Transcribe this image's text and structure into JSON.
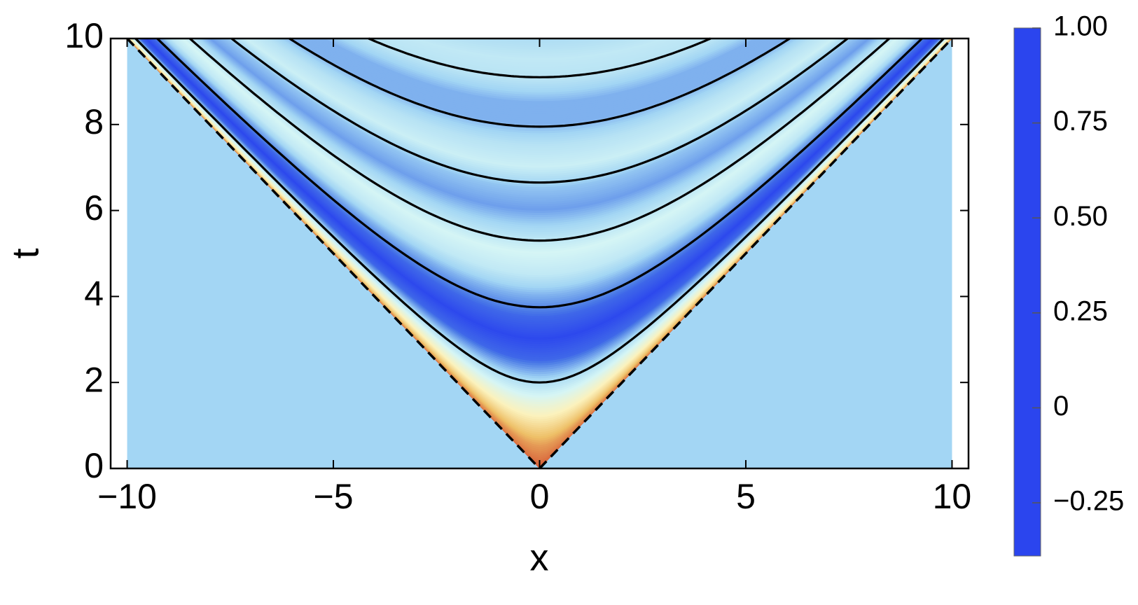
{
  "chart_data": {
    "type": "density",
    "xlabel": "x",
    "ylabel": "t",
    "xlim": [
      -10.4,
      10.4
    ],
    "ylim": [
      0,
      10
    ],
    "xticks": [
      {
        "value": -10,
        "label": "−10"
      },
      {
        "value": -5,
        "label": "−5"
      },
      0,
      5,
      10
    ],
    "yticks": [
      0,
      2,
      4,
      6,
      8,
      10
    ],
    "field": {
      "x_range": [
        -10,
        10
      ],
      "outside_value": 0,
      "s": [
        0,
        0.5,
        1,
        1.5,
        2,
        2.5,
        3,
        3.5,
        4,
        4.5,
        5,
        5.5,
        6,
        6.5,
        7,
        7.5,
        8,
        8.5,
        9,
        9.5,
        10
      ],
      "values": [
        1,
        0.85,
        0.6,
        0.35,
        0.05,
        -0.3,
        -0.38,
        -0.3,
        -0.1,
        0.15,
        0.25,
        0.05,
        -0.15,
        -0.05,
        0.2,
        0.1,
        -0.1,
        -0.1,
        0.1,
        0.15,
        0.05
      ]
    },
    "contours": {
      "levels": [
        2,
        3.75,
        5.3,
        6.65,
        7.95,
        9.1
      ],
      "color": "#000000"
    },
    "colormap": {
      "values": [
        -0.39,
        -0.25,
        0,
        0.25,
        0.5,
        0.75,
        1
      ],
      "colors": [
        "#2b45ee",
        "#4a7ae6",
        "#a3d6f4",
        "#d5f5f5",
        "#fbf2bd",
        "#eec068",
        "#d7613a"
      ]
    },
    "clim": [
      -0.39,
      1
    ],
    "cticks": [
      {
        "value": 1,
        "label": "1.00"
      },
      0.75,
      {
        "value": 0.5,
        "label": "0.50"
      },
      0.25,
      0,
      {
        "value": -0.25,
        "label": "−0.25"
      }
    ]
  }
}
